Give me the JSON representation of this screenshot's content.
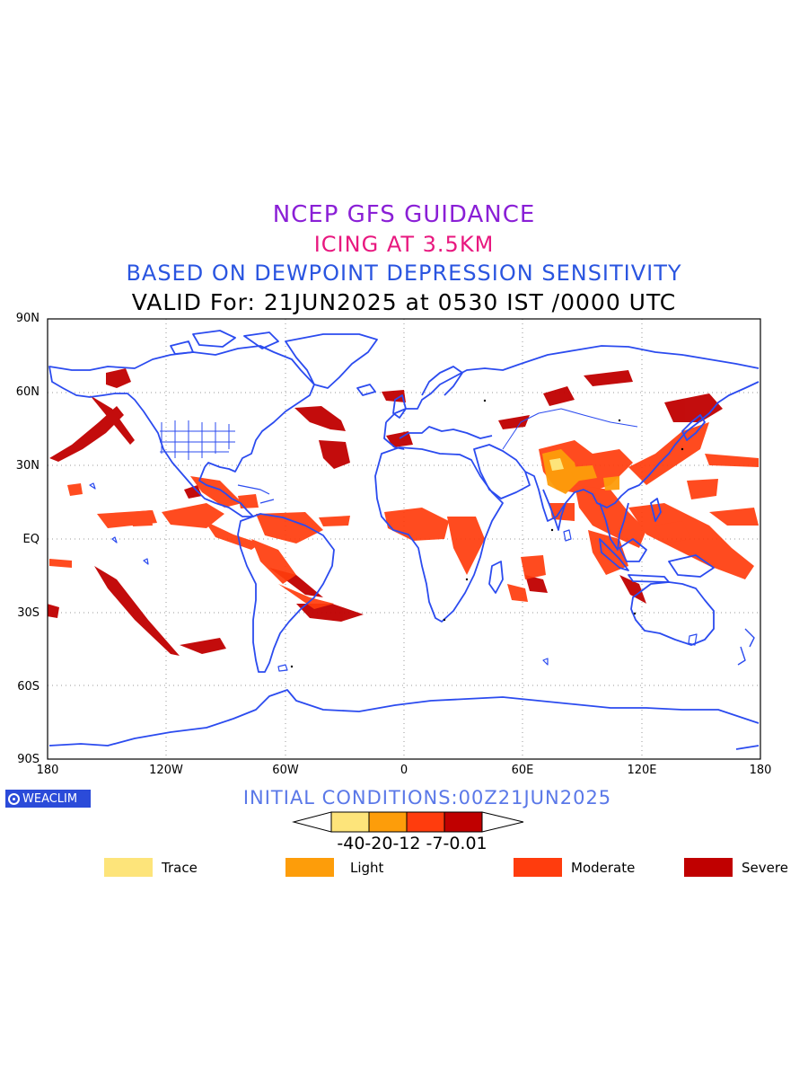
{
  "titles": {
    "line1": "NCEP GFS GUIDANCE",
    "line2": "ICING AT 3.5KM",
    "line3": "BASED ON DEWPOINT DEPRESSION SENSITIVITY",
    "line4": "VALID For: 21JUN2025 at 0530 IST /0000 UTC"
  },
  "axes": {
    "lat_labels": [
      "90N",
      "60N",
      "30N",
      "EQ",
      "30S",
      "60S",
      "90S"
    ],
    "lon_labels": [
      "180",
      "120W",
      "60W",
      "0",
      "60E",
      "120E",
      "180"
    ]
  },
  "logo": {
    "text": "WEACLIM",
    "icon": "weaclim-logo-icon"
  },
  "initial_conditions": "INITIAL CONDITIONS:00Z21JUN2025",
  "colorbar": {
    "tick_text": "-40-20-12 -7-0.01",
    "colors": [
      "#fde47a",
      "#fd9d0a",
      "#ff3c0d",
      "#c00000"
    ]
  },
  "legend": [
    {
      "label": "Trace",
      "color": "#fde47a"
    },
    {
      "label": "Light",
      "color": "#fd9d0a"
    },
    {
      "label": "Moderate",
      "color": "#ff3c0d"
    },
    {
      "label": "Severe",
      "color": "#c00000"
    }
  ],
  "map_colors": {
    "coastline": "#2b4bef",
    "grid": "#999999"
  }
}
